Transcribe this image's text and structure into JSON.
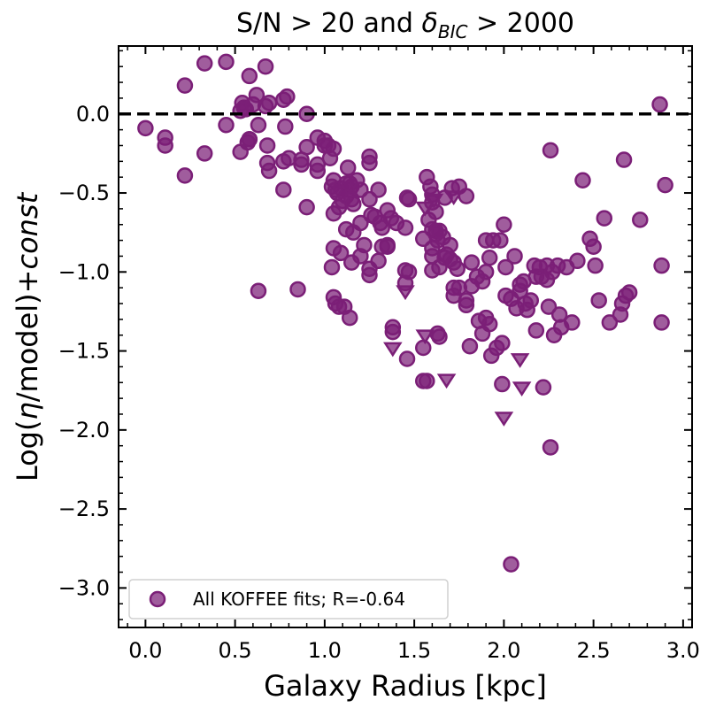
{
  "chart_data": {
    "type": "scatter",
    "title_parts": {
      "prefix": "S/N > 20 and ",
      "delta": "δ",
      "sub": "BIC",
      "suffix": " > 2000"
    },
    "xlabel": "Galaxy Radius [kpc]",
    "ylabel_parts": {
      "prefix": "Log(",
      "eta": "η",
      "middle": "/model)+",
      "italic": "const"
    },
    "xlim": [
      -0.15,
      3.05
    ],
    "ylim": [
      -3.25,
      0.43
    ],
    "x_ticks": [
      0.0,
      0.5,
      1.0,
      1.5,
      2.0,
      2.5,
      3.0
    ],
    "x_tick_labels": [
      "0.0",
      "0.5",
      "1.0",
      "1.5",
      "2.0",
      "2.5",
      "3.0"
    ],
    "y_ticks": [
      0.0,
      -0.5,
      -1.0,
      -1.5,
      -2.0,
      -2.5,
      -3.0
    ],
    "y_tick_labels": [
      "0.0",
      "−0.5",
      "−1.0",
      "−1.5",
      "−2.0",
      "−2.5",
      "−3.0"
    ],
    "reference_line": {
      "y": 0.0,
      "style": "dashed"
    },
    "legend": {
      "label": "All KOFFEE fits; R=-0.64",
      "placement": "lower-left"
    },
    "colors": {
      "points": "#7b1f77",
      "reference_line": "#000000",
      "axes": "#000000"
    },
    "series": [
      {
        "name": "All KOFFEE fits; R=-0.64",
        "marker": "circle",
        "points": [
          [
            0.0,
            -0.09
          ],
          [
            0.11,
            -0.15
          ],
          [
            0.11,
            -0.2
          ],
          [
            0.22,
            0.18
          ],
          [
            0.22,
            -0.39
          ],
          [
            0.33,
            0.32
          ],
          [
            0.33,
            -0.25
          ],
          [
            0.45,
            0.33
          ],
          [
            0.45,
            -0.07
          ],
          [
            0.53,
            0.02
          ],
          [
            0.54,
            0.07
          ],
          [
            0.55,
            0.04
          ],
          [
            0.56,
            0.03
          ],
          [
            0.57,
            -0.18
          ],
          [
            0.58,
            -0.16
          ],
          [
            0.53,
            -0.24
          ],
          [
            0.58,
            0.24
          ],
          [
            0.6,
            0.06
          ],
          [
            0.62,
            0.12
          ],
          [
            0.63,
            -0.07
          ],
          [
            0.67,
            0.3
          ],
          [
            0.67,
            0.05
          ],
          [
            0.69,
            0.07
          ],
          [
            0.68,
            -0.2
          ],
          [
            0.68,
            -0.31
          ],
          [
            0.69,
            -0.36
          ],
          [
            0.77,
            0.09
          ],
          [
            0.79,
            0.11
          ],
          [
            0.78,
            -0.08
          ],
          [
            0.77,
            -0.3
          ],
          [
            0.8,
            -0.28
          ],
          [
            0.77,
            -0.48
          ],
          [
            0.87,
            -0.29
          ],
          [
            0.87,
            -0.32
          ],
          [
            0.9,
            0.0
          ],
          [
            0.9,
            -0.21
          ],
          [
            0.96,
            -0.15
          ],
          [
            0.96,
            -0.32
          ],
          [
            0.96,
            -0.36
          ],
          [
            1.0,
            -0.17
          ],
          [
            1.02,
            -0.2
          ],
          [
            1.03,
            -0.28
          ],
          [
            1.05,
            -0.22
          ],
          [
            1.05,
            -0.42
          ],
          [
            1.04,
            -0.46
          ],
          [
            1.06,
            -0.48
          ],
          [
            1.07,
            -0.5
          ],
          [
            1.09,
            -0.47
          ],
          [
            1.05,
            -0.63
          ],
          [
            1.08,
            -0.59
          ],
          [
            1.1,
            -0.55
          ],
          [
            1.12,
            -0.44
          ],
          [
            1.14,
            -0.48
          ],
          [
            1.12,
            -0.52
          ],
          [
            1.15,
            -0.46
          ],
          [
            1.15,
            -0.54
          ],
          [
            1.16,
            -0.57
          ],
          [
            1.14,
            -0.44
          ],
          [
            1.13,
            -0.34
          ],
          [
            1.18,
            -0.42
          ],
          [
            1.2,
            -0.48
          ],
          [
            1.2,
            -0.69
          ],
          [
            1.22,
            -0.83
          ],
          [
            1.05,
            -0.85
          ],
          [
            1.04,
            -0.97
          ],
          [
            1.09,
            -0.88
          ],
          [
            1.15,
            -0.94
          ],
          [
            1.12,
            -0.73
          ],
          [
            1.16,
            -0.75
          ],
          [
            1.2,
            -0.9
          ],
          [
            1.05,
            -1.16
          ],
          [
            1.06,
            -1.2
          ],
          [
            1.08,
            -1.22
          ],
          [
            1.11,
            -1.22
          ],
          [
            1.14,
            -1.29
          ],
          [
            1.25,
            -0.27
          ],
          [
            1.25,
            -0.31
          ],
          [
            1.25,
            -0.54
          ],
          [
            1.26,
            -0.64
          ],
          [
            1.28,
            -0.65
          ],
          [
            1.25,
            -0.98
          ],
          [
            1.25,
            -1.02
          ],
          [
            1.3,
            -0.48
          ],
          [
            1.31,
            -0.69
          ],
          [
            1.32,
            -0.72
          ],
          [
            1.35,
            -0.61
          ],
          [
            1.37,
            -0.66
          ],
          [
            1.35,
            -0.83
          ],
          [
            1.35,
            -0.84
          ],
          [
            1.4,
            -0.69
          ],
          [
            1.3,
            -0.93
          ],
          [
            1.38,
            -1.35
          ],
          [
            1.38,
            -1.38
          ],
          [
            1.45,
            -0.72
          ],
          [
            1.46,
            -0.53
          ],
          [
            1.47,
            -0.54
          ],
          [
            1.45,
            -0.99
          ],
          [
            1.47,
            -1.0
          ],
          [
            1.45,
            -1.07
          ],
          [
            1.46,
            -1.55
          ],
          [
            1.55,
            -0.79
          ],
          [
            1.57,
            -0.4
          ],
          [
            1.59,
            -0.46
          ],
          [
            1.6,
            -0.56
          ],
          [
            1.58,
            -0.67
          ],
          [
            1.6,
            -0.73
          ],
          [
            1.62,
            -0.74
          ],
          [
            1.62,
            -0.62
          ],
          [
            1.6,
            -0.85
          ],
          [
            1.62,
            -0.76
          ],
          [
            1.63,
            -0.8
          ],
          [
            1.6,
            -0.9
          ],
          [
            1.64,
            -0.97
          ],
          [
            1.6,
            -0.99
          ],
          [
            1.67,
            -0.91
          ],
          [
            1.68,
            -0.89
          ],
          [
            1.7,
            -0.83
          ],
          [
            1.7,
            -0.92
          ],
          [
            1.72,
            -0.94
          ],
          [
            1.74,
            -0.98
          ],
          [
            1.72,
            -1.1
          ],
          [
            1.75,
            -1.1
          ],
          [
            1.66,
            -0.78
          ],
          [
            1.67,
            -0.53
          ],
          [
            1.71,
            -0.47
          ],
          [
            1.75,
            -0.46
          ],
          [
            1.79,
            -0.52
          ],
          [
            1.63,
            -1.39
          ],
          [
            1.64,
            -1.41
          ],
          [
            1.55,
            -1.69
          ],
          [
            1.57,
            -1.69
          ],
          [
            1.82,
            -0.94
          ],
          [
            1.82,
            -1.09
          ],
          [
            1.85,
            -1.03
          ],
          [
            1.88,
            -1.06
          ],
          [
            1.9,
            -0.8
          ],
          [
            1.9,
            -1.0
          ],
          [
            1.92,
            -0.91
          ],
          [
            1.94,
            -0.8
          ],
          [
            1.98,
            -0.8
          ],
          [
            2.0,
            -0.7
          ],
          [
            1.86,
            -1.31
          ],
          [
            1.88,
            -1.39
          ],
          [
            1.9,
            -1.29
          ],
          [
            1.92,
            -1.33
          ],
          [
            1.79,
            -1.21
          ],
          [
            1.79,
            -1.18
          ],
          [
            1.81,
            -1.47
          ],
          [
            1.93,
            -1.53
          ],
          [
            1.96,
            -1.48
          ],
          [
            1.99,
            -1.45
          ],
          [
            2.01,
            -0.97
          ],
          [
            2.01,
            -1.15
          ],
          [
            2.04,
            -1.17
          ],
          [
            2.06,
            -0.9
          ],
          [
            2.07,
            -1.23
          ],
          [
            2.09,
            -1.08
          ],
          [
            2.09,
            -1.12
          ],
          [
            2.11,
            -1.06
          ],
          [
            2.12,
            -1.2
          ],
          [
            2.13,
            -1.24
          ],
          [
            2.15,
            -1.18
          ],
          [
            2.17,
            -0.96
          ],
          [
            2.18,
            -1.03
          ],
          [
            2.2,
            -0.97
          ],
          [
            2.21,
            -1.03
          ],
          [
            2.24,
            -0.96
          ],
          [
            2.24,
            -1.05
          ],
          [
            2.25,
            -1.22
          ],
          [
            2.26,
            -0.23
          ],
          [
            2.27,
            -1.0
          ],
          [
            2.28,
            -1.4
          ],
          [
            2.3,
            -0.96
          ],
          [
            2.31,
            -1.27
          ],
          [
            2.32,
            -1.35
          ],
          [
            2.35,
            -0.97
          ],
          [
            2.38,
            -1.32
          ],
          [
            2.41,
            -0.93
          ],
          [
            2.44,
            -0.42
          ],
          [
            2.48,
            -0.79
          ],
          [
            2.5,
            -0.84
          ],
          [
            2.51,
            -0.96
          ],
          [
            2.53,
            -1.18
          ],
          [
            2.56,
            -0.66
          ],
          [
            2.59,
            -1.32
          ],
          [
            2.65,
            -1.27
          ],
          [
            2.66,
            -1.2
          ],
          [
            2.67,
            -0.29
          ],
          [
            2.68,
            -1.15
          ],
          [
            2.7,
            -1.13
          ],
          [
            2.76,
            -0.67
          ],
          [
            2.87,
            0.06
          ],
          [
            2.88,
            -0.96
          ],
          [
            2.88,
            -1.32
          ],
          [
            2.9,
            -0.45
          ],
          [
            1.99,
            -1.71
          ],
          [
            2.18,
            -1.37
          ],
          [
            2.22,
            -1.73
          ],
          [
            2.26,
            -2.11
          ],
          [
            2.04,
            -2.85
          ],
          [
            0.63,
            -1.12
          ],
          [
            0.85,
            -1.11
          ],
          [
            0.9,
            -0.59
          ],
          [
            1.32,
            -0.84
          ],
          [
            1.55,
            -1.48
          ],
          [
            1.72,
            -1.15
          ],
          [
            1.0,
            -0.2
          ],
          [
            0.58,
            -0.16
          ],
          [
            1.6,
            -0.51
          ],
          [
            1.64,
            -0.74
          ]
        ]
      },
      {
        "name": "Triangles",
        "marker": "triangle-down",
        "points": [
          [
            1.45,
            -1.12
          ],
          [
            1.38,
            -1.48
          ],
          [
            1.56,
            -0.59
          ],
          [
            1.61,
            -0.54
          ],
          [
            1.72,
            -0.52
          ],
          [
            1.68,
            -1.68
          ],
          [
            1.56,
            -1.4
          ],
          [
            2.0,
            -1.92
          ],
          [
            2.09,
            -1.55
          ],
          [
            2.1,
            -1.73
          ]
        ]
      }
    ]
  }
}
